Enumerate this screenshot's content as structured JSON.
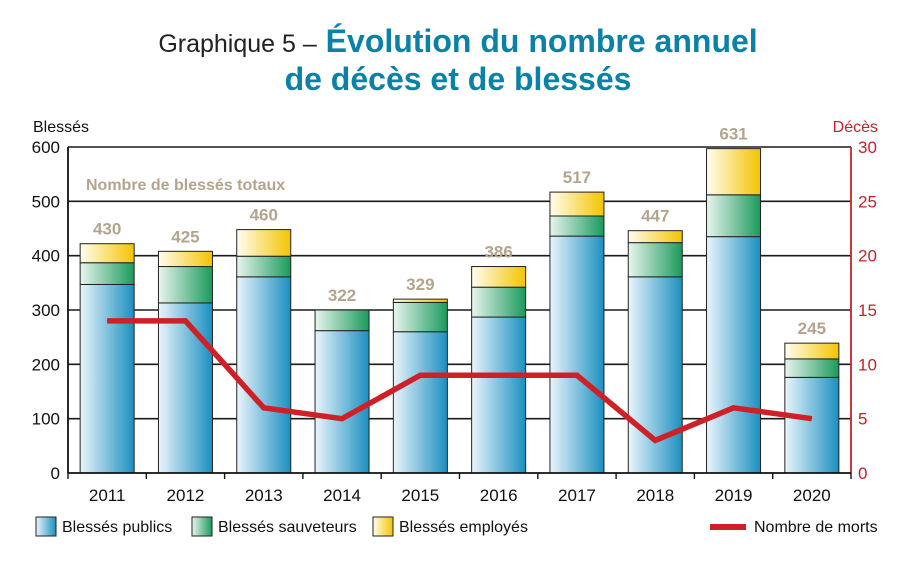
{
  "title": {
    "prefix": "Graphique 5 –",
    "line1": "Évolution du nombre annuel",
    "line2": "de décès et de blessés"
  },
  "chart_data": {
    "type": "bar",
    "title": "Graphique 5 – Évolution du nombre annuel de décès et de blessés",
    "categories": [
      "2011",
      "2012",
      "2013",
      "2014",
      "2015",
      "2016",
      "2017",
      "2018",
      "2019",
      "2020"
    ],
    "series": [
      {
        "name": "Blessés publics",
        "stack": "blesses",
        "values": [
          347,
          313,
          361,
          262,
          260,
          287,
          436,
          361,
          435,
          176
        ]
      },
      {
        "name": "Blessés sauveteurs",
        "stack": "blesses",
        "values": [
          40,
          67,
          38,
          38,
          54,
          55,
          37,
          63,
          77,
          34
        ]
      },
      {
        "name": "Blessés employés",
        "stack": "blesses",
        "values": [
          35,
          28,
          49,
          0,
          6,
          38,
          44,
          22,
          85,
          29
        ]
      },
      {
        "name": "Nombre de morts",
        "type": "line",
        "axis": "right",
        "values": [
          14,
          14,
          6,
          5,
          9,
          9,
          9,
          3,
          6,
          5
        ]
      }
    ],
    "totals": [
      430,
      425,
      460,
      322,
      329,
      386,
      517,
      447,
      631,
      245
    ],
    "ylabel": "Blessés",
    "y2label": "Décès",
    "ylim": [
      0,
      600
    ],
    "y2lim": [
      0,
      30
    ],
    "yticks": [
      0,
      100,
      200,
      300,
      400,
      500,
      600
    ],
    "y2ticks": [
      0,
      5,
      10,
      15,
      20,
      25,
      30
    ],
    "annotation": "Nombre de blessés totaux",
    "grid": true,
    "legend": [
      "Blessés publics",
      "Blessés sauveteurs",
      "Blessés employés",
      "Nombre de morts"
    ]
  },
  "colors": {
    "public": "#1b8fc0",
    "sauveteurs": "#1a9a5c",
    "employes": "#f3c400",
    "line": "#d02027",
    "total_label": "#b4a48e",
    "right_axis": "#c8202a"
  }
}
